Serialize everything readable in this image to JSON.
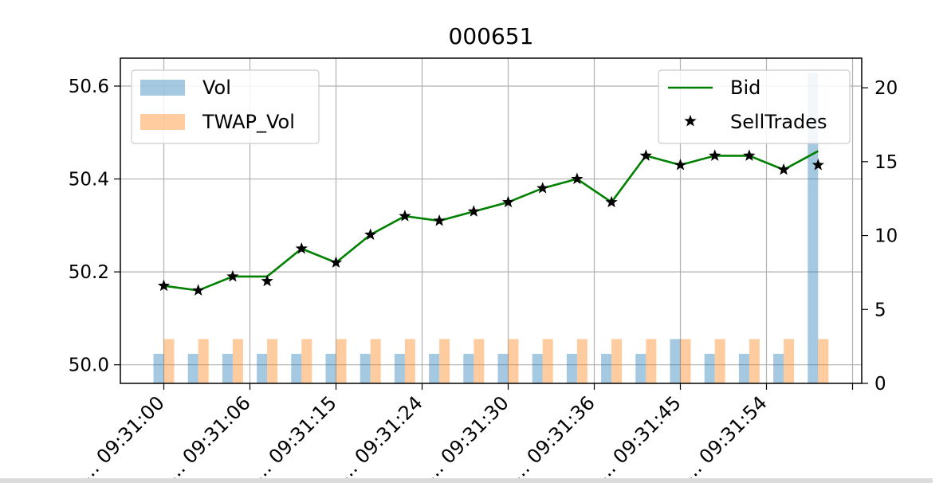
{
  "chart_data": {
    "type": "line+bar",
    "title": "000651",
    "x_tick_labels": [
      "09:31:00",
      "09:31:06",
      "09:31:15",
      "09:31:24",
      "09:31:30",
      "09:31:36",
      "09:31:45",
      "09:31:54"
    ],
    "x_tick_prefix": "...",
    "y_left": {
      "ticks": [
        "50.0",
        "50.2",
        "50.4",
        "50.6"
      ],
      "lim": [
        49.96,
        50.66
      ]
    },
    "y_right": {
      "ticks": [
        "0",
        "5",
        "10",
        "15",
        "20"
      ],
      "lim": [
        0,
        22
      ]
    },
    "grid": true,
    "legend_left": {
      "placement": "upper-left",
      "entries": [
        "Vol",
        "TWAP_Vol"
      ]
    },
    "legend_right": {
      "placement": "upper-right",
      "entries": [
        "Bid",
        "SellTrades"
      ]
    },
    "series": [
      {
        "name": "Bid",
        "kind": "line",
        "axis": "left",
        "color": "#008000",
        "values": [
          50.17,
          50.16,
          50.19,
          50.19,
          50.25,
          50.22,
          50.28,
          50.32,
          50.31,
          50.33,
          50.35,
          50.38,
          50.4,
          50.35,
          50.45,
          50.43,
          50.45,
          50.45,
          50.42,
          50.46
        ]
      },
      {
        "name": "SellTrades",
        "kind": "marker",
        "axis": "left",
        "color": "#000000",
        "values": [
          50.17,
          50.16,
          50.19,
          50.18,
          50.25,
          50.22,
          50.28,
          50.32,
          50.31,
          50.33,
          50.35,
          50.38,
          50.4,
          50.35,
          50.45,
          50.43,
          50.45,
          50.45,
          50.42,
          50.43
        ]
      },
      {
        "name": "Vol",
        "kind": "bar",
        "axis": "right",
        "color": "#1f77b4",
        "values": [
          2,
          2,
          2,
          2,
          2,
          2,
          2,
          2,
          2,
          2,
          2,
          2,
          2,
          2,
          2,
          3,
          2,
          2,
          2,
          21
        ]
      },
      {
        "name": "TWAP_Vol",
        "kind": "bar",
        "axis": "right",
        "color": "#ff7f0e",
        "values": [
          3,
          3,
          3,
          3,
          3,
          3,
          3,
          3,
          3,
          3,
          3,
          3,
          3,
          3,
          3,
          3,
          3,
          3,
          3,
          3
        ]
      }
    ]
  }
}
